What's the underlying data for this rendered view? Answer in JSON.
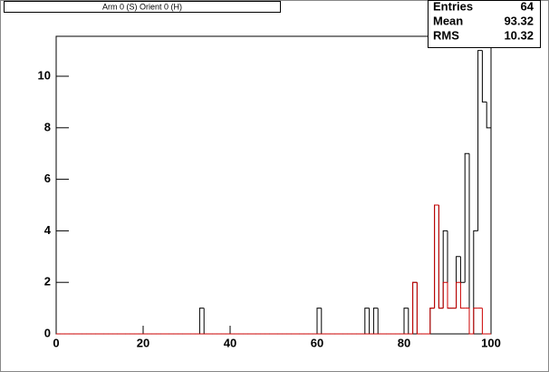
{
  "chart_data": {
    "type": "histogram",
    "title": "Arm 0 (S) Orient 0 (H)",
    "bins": [
      0,
      1,
      2,
      3,
      4,
      5,
      6,
      7,
      8,
      9,
      10,
      11,
      12,
      13,
      14,
      15,
      16,
      17,
      18,
      19,
      20,
      21,
      22,
      23,
      24,
      25,
      26,
      27,
      28,
      29,
      30,
      31,
      32,
      33,
      34,
      35,
      36,
      37,
      38,
      39,
      40,
      41,
      42,
      43,
      44,
      45,
      46,
      47,
      48,
      49,
      50,
      51,
      52,
      53,
      54,
      55,
      56,
      57,
      58,
      59,
      60,
      61,
      62,
      63,
      64,
      65,
      66,
      67,
      68,
      69,
      70,
      71,
      72,
      73,
      74,
      75,
      76,
      77,
      78,
      79,
      80,
      81,
      82,
      83,
      84,
      85,
      86,
      87,
      88,
      89,
      90,
      91,
      92,
      93,
      94,
      95,
      96,
      97,
      98,
      99,
      100
    ],
    "series": [
      {
        "color": "#000000",
        "values": [
          0,
          0,
          0,
          0,
          0,
          0,
          0,
          0,
          0,
          0,
          0,
          0,
          0,
          0,
          0,
          0,
          0,
          0,
          0,
          0,
          0,
          0,
          0,
          0,
          0,
          0,
          0,
          0,
          0,
          0,
          0,
          0,
          0,
          1,
          0,
          0,
          0,
          0,
          0,
          0,
          0,
          0,
          0,
          0,
          0,
          0,
          0,
          0,
          0,
          0,
          0,
          0,
          0,
          0,
          0,
          0,
          0,
          0,
          0,
          0,
          1,
          0,
          0,
          0,
          0,
          0,
          0,
          0,
          0,
          0,
          0,
          1,
          0,
          1,
          0,
          0,
          0,
          0,
          0,
          0,
          1,
          0,
          2,
          0,
          0,
          0,
          1,
          5,
          1,
          4,
          1,
          1,
          3,
          2,
          7,
          0,
          4,
          11,
          9,
          8
        ]
      },
      {
        "color": "#cc0000",
        "values": [
          0,
          0,
          0,
          0,
          0,
          0,
          0,
          0,
          0,
          0,
          0,
          0,
          0,
          0,
          0,
          0,
          0,
          0,
          0,
          0,
          0,
          0,
          0,
          0,
          0,
          0,
          0,
          0,
          0,
          0,
          0,
          0,
          0,
          0,
          0,
          0,
          0,
          0,
          0,
          0,
          0,
          0,
          0,
          0,
          0,
          0,
          0,
          0,
          0,
          0,
          0,
          0,
          0,
          0,
          0,
          0,
          0,
          0,
          0,
          0,
          0,
          0,
          0,
          0,
          0,
          0,
          0,
          0,
          0,
          0,
          0,
          0,
          0,
          0,
          0,
          0,
          0,
          0,
          0,
          0,
          0,
          0,
          2,
          0,
          0,
          0,
          1,
          5,
          1,
          2,
          1,
          1,
          2,
          1,
          1,
          0,
          1,
          1,
          0,
          0
        ]
      }
    ],
    "xlim": [
      0,
      100
    ],
    "xticks": [
      0,
      20,
      40,
      60,
      80,
      100
    ],
    "ylim": [
      0,
      11.55
    ],
    "yticks": [
      0,
      2,
      4,
      6,
      8,
      10
    ],
    "stats": {
      "labels": [
        "Entries",
        "Mean",
        "RMS"
      ],
      "values": [
        64,
        93.32,
        10.32
      ]
    }
  }
}
